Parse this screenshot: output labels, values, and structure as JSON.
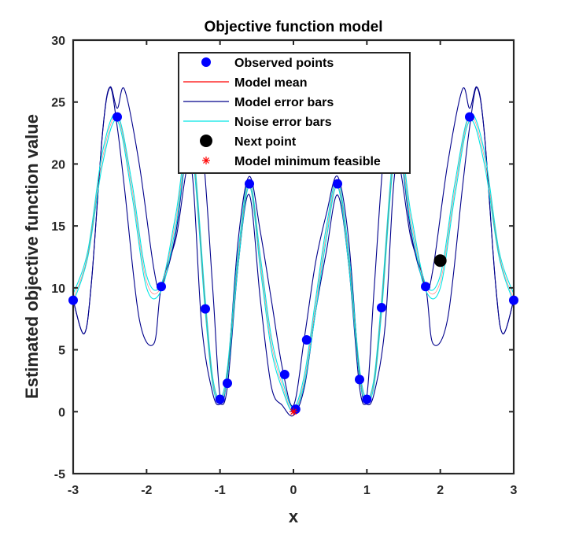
{
  "chart_data": {
    "type": "line",
    "title": "Objective function model",
    "xlabel": "x",
    "ylabel": "Estimated objective function value",
    "xlim": [
      -3,
      3
    ],
    "ylim": [
      -5,
      30
    ],
    "xticks": [
      "-3",
      "-2",
      "-1",
      "0",
      "1",
      "2",
      "3"
    ],
    "yticks": [
      "-5",
      "0",
      "5",
      "10",
      "15",
      "20",
      "25",
      "30"
    ],
    "legend_position": "top-center",
    "legend": [
      {
        "label": "Observed points",
        "marker": "dot",
        "color": "#0000ff"
      },
      {
        "label": "Model mean",
        "marker": "line",
        "color": "#ff0000"
      },
      {
        "label": "Model error bars",
        "marker": "line",
        "color": "#00008b"
      },
      {
        "label": "Noise error bars",
        "marker": "line",
        "color": "#00ffff"
      },
      {
        "label": "Next point",
        "marker": "dot",
        "color": "#000000"
      },
      {
        "label": "Model minimum feasible",
        "marker": "star",
        "color": "#ff0000"
      }
    ],
    "observed_points": {
      "x": [
        -3.0,
        -2.4,
        -1.8,
        -1.2,
        -1.0,
        -0.9,
        -0.6,
        -0.12,
        0.03,
        0.18,
        0.6,
        0.9,
        1.0,
        1.2,
        1.8,
        2.4,
        3.0
      ],
      "y": [
        9.0,
        23.8,
        10.1,
        8.3,
        1.0,
        2.3,
        18.4,
        3.0,
        0.2,
        5.8,
        18.4,
        2.6,
        1.0,
        8.4,
        10.1,
        23.8,
        9.0
      ]
    },
    "next_point": {
      "x": 2.0,
      "y": 12.2
    },
    "model_minimum_feasible": {
      "x": 0.0,
      "y": 0.0
    },
    "model_error_bars": {
      "x": [
        -3.0,
        -2.85,
        -2.75,
        -2.6,
        -2.5,
        -2.4,
        -2.3,
        -2.1,
        -1.9,
        -1.8,
        -1.6,
        -1.4,
        -1.25,
        -1.1,
        -1.0,
        -0.9,
        -0.75,
        -0.6,
        -0.45,
        -0.3,
        -0.15,
        0.0,
        0.15,
        0.3,
        0.45,
        0.6,
        0.75,
        0.9,
        1.0,
        1.1,
        1.25,
        1.4,
        1.6,
        1.8,
        1.9,
        2.1,
        2.3,
        2.4,
        2.5,
        2.6,
        2.75,
        2.85,
        3.0
      ],
      "upper": [
        9.0,
        6.3,
        10.5,
        22.5,
        26.2,
        24.5,
        26.0,
        20.0,
        11.5,
        10.1,
        14.5,
        23.5,
        22.0,
        10.0,
        1.3,
        3.0,
        14.0,
        19.0,
        14.5,
        9.0,
        3.5,
        0.5,
        6.0,
        12.0,
        16.0,
        19.0,
        14.0,
        3.0,
        1.3,
        10.0,
        22.0,
        23.5,
        14.5,
        10.1,
        11.5,
        20.0,
        26.0,
        24.5,
        26.2,
        22.5,
        10.5,
        6.3,
        9.0
      ],
      "lower": [
        9.0,
        6.3,
        10.5,
        22.5,
        26.2,
        23.0,
        18.0,
        7.5,
        5.5,
        10.1,
        14.0,
        20.0,
        7.0,
        1.5,
        0.6,
        2.0,
        12.0,
        17.5,
        9.0,
        2.0,
        0.5,
        -0.3,
        2.0,
        8.0,
        13.0,
        17.5,
        12.0,
        2.0,
        0.6,
        1.5,
        7.0,
        20.0,
        14.0,
        10.1,
        5.5,
        7.5,
        18.0,
        23.0,
        26.2,
        22.5,
        10.5,
        6.3,
        9.0
      ]
    },
    "noise_error_bars": {
      "x": [
        -3.0,
        -2.8,
        -2.6,
        -2.4,
        -2.2,
        -2.0,
        -1.8,
        -1.6,
        -1.4,
        -1.2,
        -1.1,
        -1.0,
        -0.9,
        -0.75,
        -0.6,
        -0.45,
        -0.3,
        -0.15,
        0.0,
        0.15,
        0.3,
        0.45,
        0.6,
        0.75,
        0.9,
        1.0,
        1.1,
        1.2,
        1.4,
        1.6,
        1.8,
        2.0,
        2.2,
        2.4,
        2.6,
        2.8,
        3.0
      ],
      "upper": [
        9.5,
        13.0,
        21.0,
        24.0,
        18.5,
        11.0,
        10.3,
        16.0,
        22.5,
        9.0,
        2.8,
        1.1,
        3.5,
        13.0,
        18.7,
        12.5,
        6.0,
        2.5,
        0.3,
        3.0,
        9.0,
        15.0,
        18.7,
        13.0,
        3.5,
        1.1,
        2.8,
        9.0,
        22.5,
        16.0,
        10.3,
        11.0,
        18.5,
        24.0,
        21.0,
        13.0,
        9.5
      ],
      "lower": [
        8.8,
        12.5,
        20.0,
        23.5,
        17.5,
        10.0,
        9.8,
        15.0,
        21.5,
        8.0,
        2.2,
        0.8,
        2.8,
        12.0,
        18.2,
        11.5,
        5.0,
        1.8,
        0.0,
        2.3,
        8.0,
        14.0,
        18.2,
        12.0,
        2.8,
        0.8,
        2.2,
        8.0,
        21.5,
        15.0,
        9.8,
        10.0,
        17.5,
        23.5,
        20.0,
        12.5,
        8.8
      ]
    },
    "model_mean": {
      "x": [
        -3.0,
        -2.8,
        -2.6,
        -2.4,
        -2.2,
        -2.0,
        -1.8,
        -1.6,
        -1.4,
        -1.2,
        -1.1,
        -1.0,
        -0.9,
        -0.75,
        -0.6,
        -0.45,
        -0.3,
        -0.15,
        0.0,
        0.15,
        0.3,
        0.45,
        0.6,
        0.75,
        0.9,
        1.0,
        1.1,
        1.2,
        1.4,
        1.6,
        1.8,
        2.0,
        2.2,
        2.4,
        2.6,
        2.8,
        3.0
      ],
      "y": [
        9.1,
        12.7,
        20.5,
        23.8,
        18.0,
        10.5,
        10.1,
        15.5,
        22.0,
        8.5,
        2.5,
        1.0,
        3.1,
        12.5,
        18.4,
        12.0,
        5.5,
        2.1,
        0.1,
        2.6,
        8.5,
        14.5,
        18.4,
        12.5,
        3.1,
        1.0,
        2.5,
        8.5,
        22.0,
        15.5,
        10.1,
        10.5,
        18.0,
        23.8,
        20.5,
        12.7,
        9.1
      ]
    }
  }
}
